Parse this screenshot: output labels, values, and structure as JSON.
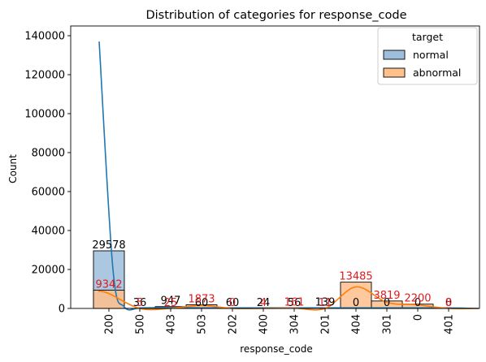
{
  "chart_data": {
    "type": "bar",
    "title": "Distribution of categories for response_code",
    "xlabel": "response_code",
    "ylabel": "Count",
    "ylim": [
      0,
      145000
    ],
    "yticks": [
      0,
      20000,
      40000,
      60000,
      80000,
      100000,
      120000,
      140000
    ],
    "categories": [
      "200",
      "500",
      "403",
      "503",
      "202",
      "400",
      "304",
      "201",
      "404",
      "301",
      "0",
      "401"
    ],
    "legend": {
      "title": "target",
      "position": "top-right"
    },
    "series": [
      {
        "name": "normal",
        "color": "#1f77b4",
        "fill": "#9dbedc",
        "values": [
          29578,
          36,
          947,
          60,
          60,
          24,
          56,
          139,
          0,
          0,
          0,
          0
        ],
        "labels": [
          "29578",
          "36",
          "947",
          "60",
          "60",
          "24",
          "56",
          "139",
          "0",
          "0",
          "0",
          "0"
        ],
        "label_color": "#000000"
      },
      {
        "name": "abnormal",
        "color": "#ff7f0e",
        "fill": "#ffc08c",
        "values": [
          9342,
          5,
          25,
          1873,
          0,
          4,
          161,
          11,
          13485,
          3819,
          2200,
          8
        ],
        "labels": [
          "9342",
          "5",
          "25",
          "1873",
          "0",
          "4",
          "161",
          "11",
          "13485",
          "3819",
          "2200",
          "8"
        ],
        "label_color": "#e31a1c"
      }
    ]
  }
}
